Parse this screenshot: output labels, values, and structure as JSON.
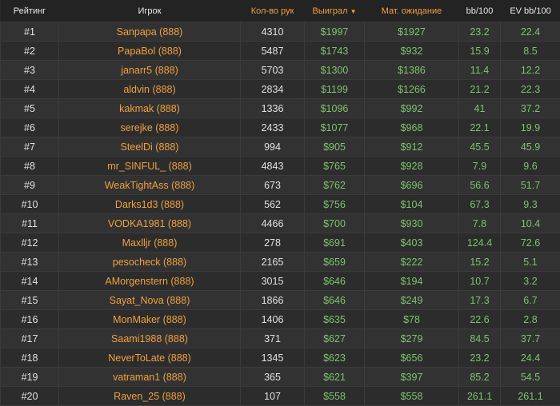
{
  "headers": {
    "rank": "Рейтинг",
    "player": "Игрок",
    "hands": "Кол-во рук",
    "won": "Выиграл",
    "ev": "Мат. ожидание",
    "bb": "bb/100",
    "evbb": "EV bb/100",
    "sort_icon": "caret-down"
  },
  "colors": {
    "accent": "#f0a040",
    "positive": "#7cc46e",
    "background": "#2a2a2a"
  },
  "rows": [
    [
      "#1",
      "Sanpapa (888)",
      "4310",
      "$1997",
      "$1927",
      "23.2",
      "22.4"
    ],
    [
      "#2",
      "PapaBol (888)",
      "5487",
      "$1743",
      "$932",
      "15.9",
      "8.5"
    ],
    [
      "#3",
      "janarr5 (888)",
      "5703",
      "$1300",
      "$1386",
      "11.4",
      "12.2"
    ],
    [
      "#4",
      "aldvin (888)",
      "2834",
      "$1199",
      "$1266",
      "21.2",
      "22.3"
    ],
    [
      "#5",
      "kakmak (888)",
      "1336",
      "$1096",
      "$992",
      "41",
      "37.2"
    ],
    [
      "#6",
      "serejke (888)",
      "2433",
      "$1077",
      "$968",
      "22.1",
      "19.9"
    ],
    [
      "#7",
      "SteelDi (888)",
      "994",
      "$905",
      "$912",
      "45.5",
      "45.9"
    ],
    [
      "#8",
      "mr_SINFUL_ (888)",
      "4843",
      "$765",
      "$928",
      "7.9",
      "9.6"
    ],
    [
      "#9",
      "WeakTightAss (888)",
      "673",
      "$762",
      "$696",
      "56.6",
      "51.7"
    ],
    [
      "#10",
      "Darks1d3 (888)",
      "562",
      "$756",
      "$104",
      "67.3",
      "9.3"
    ],
    [
      "#11",
      "VODKA1981 (888)",
      "4466",
      "$700",
      "$930",
      "7.8",
      "10.4"
    ],
    [
      "#12",
      "Maxlljr (888)",
      "278",
      "$691",
      "$403",
      "124.4",
      "72.6"
    ],
    [
      "#13",
      "pesocheck (888)",
      "2165",
      "$659",
      "$222",
      "15.2",
      "5.1"
    ],
    [
      "#14",
      "AMorgenstern (888)",
      "3015",
      "$646",
      "$194",
      "10.7",
      "3.2"
    ],
    [
      "#15",
      "Sayat_Nova (888)",
      "1866",
      "$646",
      "$249",
      "17.3",
      "6.7"
    ],
    [
      "#16",
      "MonMaker (888)",
      "1406",
      "$635",
      "$78",
      "22.6",
      "2.8"
    ],
    [
      "#17",
      "Saami1988 (888)",
      "371",
      "$627",
      "$279",
      "84.5",
      "37.7"
    ],
    [
      "#18",
      "NeverToLate (888)",
      "1345",
      "$623",
      "$656",
      "23.2",
      "24.4"
    ],
    [
      "#19",
      "vatraman1 (888)",
      "365",
      "$621",
      "$397",
      "85.2",
      "54.5"
    ],
    [
      "#20",
      "Raven_25 (888)",
      "107",
      "$558",
      "$558",
      "261.1",
      "261.1"
    ]
  ]
}
